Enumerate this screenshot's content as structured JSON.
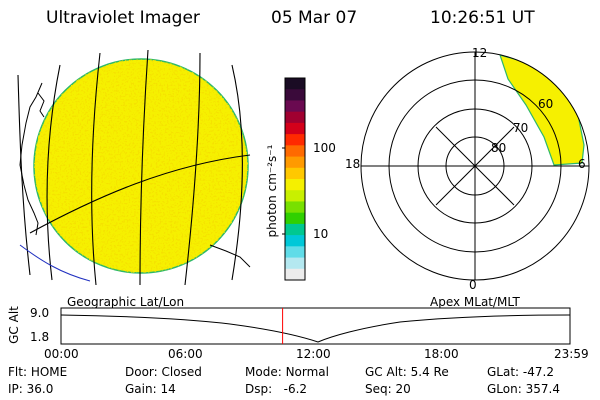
{
  "header": {
    "instrument": "Ultraviolet Imager",
    "date": "05 Mar 07",
    "time": "10:26:51 UT"
  },
  "colorbar": {
    "unit_label": "photon cm⁻²s⁻¹",
    "tick_labels": [
      "100",
      "10"
    ],
    "colors": [
      "#1a0c24",
      "#3a0a3a",
      "#6a0a50",
      "#a00030",
      "#d4001a",
      "#ff2a00",
      "#ff6a00",
      "#ff9a00",
      "#ffc800",
      "#f5f000",
      "#c8f000",
      "#78e000",
      "#30d000",
      "#00c890",
      "#00c8d8",
      "#60dce8",
      "#b4e8f0",
      "#ececec"
    ]
  },
  "geo_view": {
    "label": "Geographic Lat/Lon",
    "fill_color": "#f6f000",
    "speckle_color": "#e8c400"
  },
  "polar_view": {
    "label": "Apex MLat/MLT",
    "mlt_labels": [
      "12",
      "18",
      "6",
      "0"
    ],
    "mlat_labels": [
      "60",
      "70",
      "80"
    ]
  },
  "timeline": {
    "axis_label": "GC Alt",
    "y_ticks": [
      "9.0",
      "1.8"
    ],
    "x_ticks": [
      "00:00",
      "06:00",
      "12:00",
      "18:00",
      "23:59"
    ],
    "current_time_hours": 10.45,
    "marker_color": "#ff0000"
  },
  "footer": {
    "row1": [
      {
        "key": "Flt:",
        "val": "HOME"
      },
      {
        "key": "Door:",
        "val": "Closed"
      },
      {
        "key": "Mode:",
        "val": "Normal"
      },
      {
        "key": "GC Alt:",
        "val": "5.4 Re"
      },
      {
        "key": "GLat:",
        "val": "-47.2"
      }
    ],
    "row2": [
      {
        "key": "IP:",
        "val": "36.0"
      },
      {
        "key": "Gain:",
        "val": "14"
      },
      {
        "key": "Dsp:",
        "val": "  -6.2"
      },
      {
        "key": "Seq:",
        "val": "20"
      },
      {
        "key": "GLon:",
        "val": "357.4"
      }
    ]
  }
}
